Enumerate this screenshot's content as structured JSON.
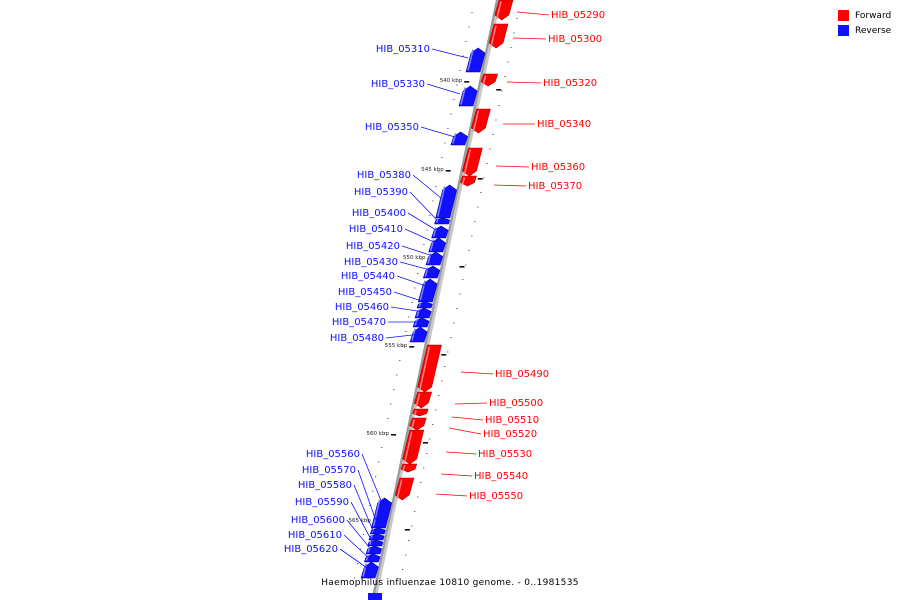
{
  "legend": {
    "items": [
      {
        "label": "Forward",
        "color": "#ff0000"
      },
      {
        "label": "Reverse",
        "color": "#1010ff"
      }
    ]
  },
  "caption": "Haemophilus influenzae 10810 genome. - 0..1981535",
  "colors": {
    "forward": "#ff0000",
    "reverse": "#1010ff",
    "backbone": "#999999"
  },
  "ticks": [
    {
      "label": "540 kbp"
    },
    {
      "label": "545 kbp"
    },
    {
      "label": "550 kbp"
    },
    {
      "label": "555 kbp"
    },
    {
      "label": "560 kbp"
    },
    {
      "label": "565 kbp"
    }
  ],
  "genes": [
    {
      "name": "HIB_05290",
      "strand": "forward"
    },
    {
      "name": "HIB_05300",
      "strand": "forward"
    },
    {
      "name": "HIB_05310",
      "strand": "reverse"
    },
    {
      "name": "HIB_05320",
      "strand": "forward"
    },
    {
      "name": "HIB_05330",
      "strand": "reverse"
    },
    {
      "name": "HIB_05340",
      "strand": "forward"
    },
    {
      "name": "HIB_05350",
      "strand": "reverse"
    },
    {
      "name": "HIB_05360",
      "strand": "forward"
    },
    {
      "name": "HIB_05370",
      "strand": "forward"
    },
    {
      "name": "HIB_05380",
      "strand": "reverse"
    },
    {
      "name": "HIB_05390",
      "strand": "reverse"
    },
    {
      "name": "HIB_05400",
      "strand": "reverse"
    },
    {
      "name": "HIB_05410",
      "strand": "reverse"
    },
    {
      "name": "HIB_05420",
      "strand": "reverse"
    },
    {
      "name": "HIB_05430",
      "strand": "reverse"
    },
    {
      "name": "HIB_05440",
      "strand": "reverse"
    },
    {
      "name": "HIB_05450",
      "strand": "reverse"
    },
    {
      "name": "HIB_05460",
      "strand": "reverse"
    },
    {
      "name": "HIB_05470",
      "strand": "reverse"
    },
    {
      "name": "HIB_05480",
      "strand": "reverse"
    },
    {
      "name": "HIB_05490",
      "strand": "forward"
    },
    {
      "name": "HIB_05500",
      "strand": "forward"
    },
    {
      "name": "HIB_05510",
      "strand": "forward"
    },
    {
      "name": "HIB_05520",
      "strand": "forward"
    },
    {
      "name": "HIB_05530",
      "strand": "forward"
    },
    {
      "name": "HIB_05540",
      "strand": "forward"
    },
    {
      "name": "HIB_05550",
      "strand": "forward"
    },
    {
      "name": "HIB_05560",
      "strand": "reverse"
    },
    {
      "name": "HIB_05570",
      "strand": "reverse"
    },
    {
      "name": "HIB_05580",
      "strand": "reverse"
    },
    {
      "name": "HIB_05590",
      "strand": "reverse"
    },
    {
      "name": "HIB_05600",
      "strand": "reverse"
    },
    {
      "name": "HIB_05610",
      "strand": "reverse"
    },
    {
      "name": "HIB_05620",
      "strand": "reverse"
    }
  ]
}
